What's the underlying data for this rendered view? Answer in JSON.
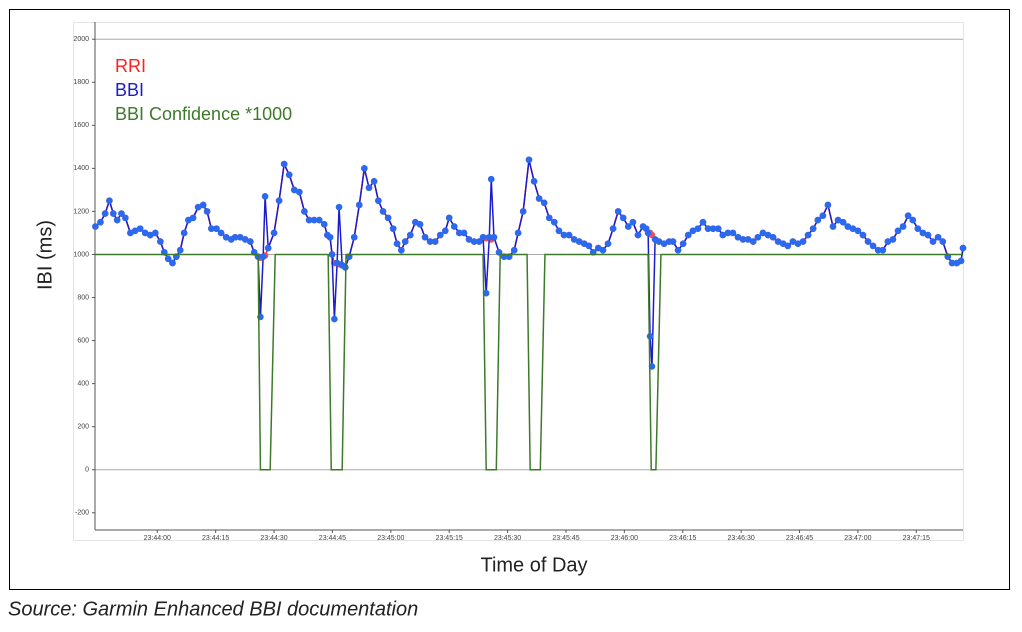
{
  "chart_data": {
    "type": "line",
    "ylabel": "IBI (ms)",
    "xlabel": "Time of Day",
    "xlim": [
      85424,
      85647
    ],
    "ylim": [
      -280,
      2080
    ],
    "yticks": [
      -200,
      0,
      200,
      400,
      600,
      800,
      1000,
      1200,
      1400,
      1600,
      1800,
      2000
    ],
    "xticks": [
      {
        "value": 85440,
        "label": "23:44:00"
      },
      {
        "value": 85455,
        "label": "23:44:15"
      },
      {
        "value": 85470,
        "label": "23:44:30"
      },
      {
        "value": 85485,
        "label": "23:44:45"
      },
      {
        "value": 85500,
        "label": "23:45:00"
      },
      {
        "value": 85515,
        "label": "23:45:15"
      },
      {
        "value": 85530,
        "label": "23:45:30"
      },
      {
        "value": 85545,
        "label": "23:45:45"
      },
      {
        "value": 85560,
        "label": "23:46:00"
      },
      {
        "value": 85575,
        "label": "23:46:15"
      },
      {
        "value": 85590,
        "label": "23:46:30"
      },
      {
        "value": 85605,
        "label": "23:46:45"
      },
      {
        "value": 85620,
        "label": "23:47:00"
      },
      {
        "value": 85635,
        "label": "23:47:15"
      }
    ],
    "reference_lines": [
      0,
      1000,
      2000
    ],
    "legend": "top-left",
    "x": [
      85424.1,
      85425.4,
      85426.6,
      85427.7,
      85428.7,
      85429.7,
      85430.8,
      85431.8,
      85433.1,
      85434.3,
      85435.6,
      85436.9,
      85438.2,
      85439.5,
      85440.8,
      85441.8,
      85442.8,
      85443.9,
      85444.9,
      85445.9,
      85446.9,
      85448.0,
      85449.2,
      85450.5,
      85451.8,
      85452.8,
      85453.9,
      85455.2,
      85456.4,
      85457.7,
      85459.0,
      85460.0,
      85461.3,
      85462.6,
      85463.9,
      85464.9,
      85465.9,
      85466.5,
      85467.2,
      85467.7,
      85468.5,
      85470.0,
      85471.3,
      85472.6,
      85473.9,
      85475.2,
      85476.5,
      85477.8,
      85479.0,
      85480.3,
      85481.6,
      85482.9,
      85483.7,
      85484.4,
      85484.9,
      85485.5,
      85486.2,
      85486.7,
      85487.5,
      85488.3,
      85489.3,
      85490.6,
      85491.9,
      85493.2,
      85494.4,
      85495.7,
      85496.8,
      85498.0,
      85499.3,
      85500.6,
      85501.6,
      85502.7,
      85503.7,
      85505.0,
      85506.3,
      85507.5,
      85508.8,
      85510.1,
      85511.4,
      85512.7,
      85514.0,
      85515.0,
      85516.3,
      85517.6,
      85518.8,
      85520.1,
      85521.4,
      85522.7,
      85523.7,
      85524.5,
      85525.3,
      85525.8,
      85526.5,
      85527.8,
      85529.1,
      85530.4,
      85531.7,
      85532.7,
      85534.0,
      85535.5,
      85536.8,
      85538.1,
      85539.4,
      85540.7,
      85542.0,
      85543.2,
      85544.5,
      85545.8,
      85547.1,
      85548.4,
      85549.7,
      85550.9,
      85552.0,
      85553.3,
      85554.5,
      85555.8,
      85557.1,
      85558.4,
      85559.7,
      85561.0,
      85562.2,
      85563.5,
      85564.8,
      85565.6,
      85566.1,
      85566.6,
      85567.1,
      85567.9,
      85568.9,
      85570.2,
      85571.5,
      85572.5,
      85573.8,
      85575.1,
      85576.4,
      85577.6,
      85578.9,
      85580.2,
      85581.5,
      85582.8,
      85584.1,
      85585.3,
      85586.6,
      85587.9,
      85589.2,
      85590.5,
      85591.8,
      85593.1,
      85594.3,
      85595.6,
      85596.9,
      85598.2,
      85599.5,
      85600.8,
      85602.0,
      85603.3,
      85604.6,
      85605.9,
      85607.2,
      85608.5,
      85609.7,
      85611.0,
      85612.3,
      85613.6,
      85614.9,
      85616.2,
      85617.4,
      85618.7,
      85620.0,
      85621.3,
      85622.6,
      85623.9,
      85625.2,
      85626.4,
      85627.7,
      85629.0,
      85630.3,
      85631.6,
      85632.9,
      85634.1,
      85635.4,
      85636.7,
      85638.0,
      85639.3,
      85640.6,
      85641.8,
      85643.1,
      85644.2,
      85645.4,
      85646.5,
      85647.0
    ],
    "series": [
      {
        "name": "RRI",
        "color": "#ff2020",
        "marker_color": "#f05050",
        "markers": true,
        "values": [
          1130,
          1150,
          1190,
          1250,
          1190,
          1160,
          1190,
          1170,
          1100,
          1110,
          1120,
          1100,
          1090,
          1100,
          1060,
          1010,
          980,
          960,
          990,
          1020,
          1100,
          1160,
          1170,
          1220,
          1230,
          1200,
          1120,
          1120,
          1100,
          1080,
          1070,
          1080,
          1080,
          1070,
          1060,
          1010,
          990,
          985,
          990,
          995,
          1030,
          1100,
          1250,
          1420,
          1370,
          1300,
          1290,
          1200,
          1160,
          1160,
          1160,
          1140,
          1090,
          1080,
          1000,
          960,
          960,
          955,
          950,
          940,
          990,
          1080,
          1230,
          1400,
          1310,
          1340,
          1250,
          1200,
          1170,
          1120,
          1050,
          1020,
          1060,
          1090,
          1150,
          1140,
          1080,
          1060,
          1060,
          1090,
          1110,
          1170,
          1130,
          1100,
          1100,
          1070,
          1060,
          1060,
          1080,
          1075,
          1080,
          1070,
          1080,
          1010,
          990,
          990,
          1020,
          1100,
          1200,
          1440,
          1340,
          1260,
          1240,
          1170,
          1150,
          1110,
          1090,
          1090,
          1070,
          1060,
          1050,
          1040,
          1010,
          1030,
          1020,
          1050,
          1120,
          1200,
          1170,
          1130,
          1150,
          1090,
          1130,
          1120,
          1100,
          1100,
          1090,
          1070,
          1060,
          1050,
          1060,
          1060,
          1020,
          1050,
          1090,
          1110,
          1120,
          1150,
          1120,
          1120,
          1120,
          1090,
          1100,
          1100,
          1080,
          1070,
          1070,
          1060,
          1080,
          1100,
          1090,
          1080,
          1060,
          1050,
          1040,
          1060,
          1050,
          1060,
          1090,
          1120,
          1160,
          1180,
          1230,
          1130,
          1160,
          1150,
          1130,
          1120,
          1110,
          1090,
          1060,
          1040,
          1020,
          1020,
          1060,
          1070,
          1110,
          1130,
          1180,
          1160,
          1120,
          1100,
          1090,
          1060,
          1080,
          1060,
          990,
          960,
          960,
          970,
          1030
        ]
      },
      {
        "name": "BBI",
        "color": "#1c1ccc",
        "marker_color": "#2a6af0",
        "markers": true,
        "values": [
          1130,
          1150,
          1190,
          1250,
          1190,
          1160,
          1190,
          1170,
          1100,
          1110,
          1120,
          1100,
          1090,
          1100,
          1060,
          1010,
          980,
          960,
          990,
          1020,
          1100,
          1160,
          1170,
          1220,
          1230,
          1200,
          1120,
          1120,
          1100,
          1080,
          1070,
          1080,
          1080,
          1070,
          1060,
          1010,
          990,
          710,
          990,
          1270,
          1030,
          1100,
          1250,
          1420,
          1370,
          1300,
          1290,
          1200,
          1160,
          1160,
          1160,
          1140,
          1090,
          1080,
          1000,
          700,
          960,
          1220,
          950,
          940,
          990,
          1080,
          1230,
          1400,
          1310,
          1340,
          1250,
          1200,
          1170,
          1120,
          1050,
          1020,
          1060,
          1090,
          1150,
          1140,
          1080,
          1060,
          1060,
          1090,
          1110,
          1170,
          1130,
          1100,
          1100,
          1070,
          1060,
          1060,
          1080,
          820,
          1080,
          1350,
          1080,
          1010,
          990,
          990,
          1020,
          1100,
          1200,
          1440,
          1340,
          1260,
          1240,
          1170,
          1150,
          1110,
          1090,
          1090,
          1070,
          1060,
          1050,
          1040,
          1010,
          1030,
          1020,
          1050,
          1120,
          1200,
          1170,
          1130,
          1150,
          1090,
          1130,
          1120,
          1100,
          620,
          480,
          1070,
          1060,
          1050,
          1060,
          1060,
          1020,
          1050,
          1090,
          1110,
          1120,
          1150,
          1120,
          1120,
          1120,
          1090,
          1100,
          1100,
          1080,
          1070,
          1070,
          1060,
          1080,
          1100,
          1090,
          1080,
          1060,
          1050,
          1040,
          1060,
          1050,
          1060,
          1090,
          1120,
          1160,
          1180,
          1230,
          1130,
          1160,
          1150,
          1130,
          1120,
          1110,
          1090,
          1060,
          1040,
          1020,
          1020,
          1060,
          1070,
          1110,
          1130,
          1180,
          1160,
          1120,
          1100,
          1090,
          1060,
          1080,
          1060,
          990,
          960,
          960,
          970,
          1030
        ]
      },
      {
        "name": "BBI Confidence *1000",
        "color": "#3d7a2a",
        "markers": false,
        "x": [
          85424,
          85465.9,
          85466.5,
          85469.0,
          85470.3,
          85483.9,
          85484.7,
          85487.5,
          85488.5,
          85523.7,
          85524.5,
          85527.1,
          85528.1,
          85535.0,
          85535.8,
          85538.4,
          85539.6,
          85566.1,
          85566.9,
          85568.1,
          85569.4,
          85647
        ],
        "values": [
          1000,
          1000,
          0,
          0,
          1000,
          1000,
          0,
          0,
          1000,
          1000,
          0,
          0,
          1000,
          1000,
          0,
          0,
          1000,
          1000,
          0,
          0,
          1000,
          1000
        ]
      }
    ]
  },
  "caption": "Source: Garmin Enhanced BBI documentation"
}
